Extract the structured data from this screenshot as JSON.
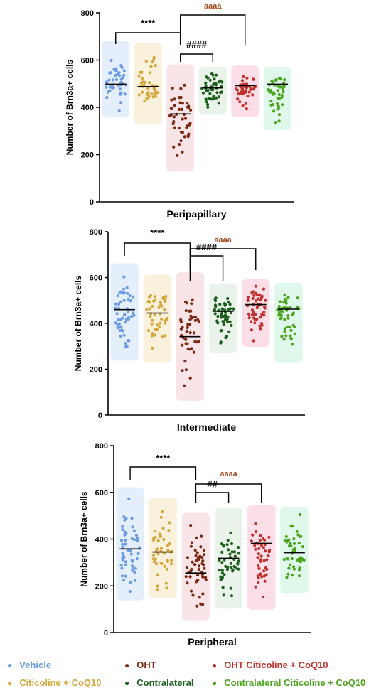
{
  "chart_data": [
    {
      "type": "scatter",
      "title": "Peripapillary",
      "ylabel": "Number of Brn3a+ cells",
      "ylim": [
        0,
        800
      ],
      "yticks": [
        0,
        200,
        400,
        600,
        800
      ],
      "groups": [
        "Vehicle",
        "Citicoline + CoQ10",
        "OHT",
        "Contralateral",
        "OHT Citicoline + CoQ10",
        "Contralateral Citicoline + CoQ10"
      ],
      "means": [
        498,
        488,
        372,
        482,
        492,
        498
      ],
      "ranges": [
        [
          370,
          670
        ],
        [
          340,
          660
        ],
        [
          140,
          570
        ],
        [
          380,
          560
        ],
        [
          370,
          565
        ],
        [
          315,
          560
        ]
      ],
      "n": [
        45,
        40,
        45,
        45,
        45,
        45
      ],
      "significance": [
        {
          "from": 0,
          "to": 2,
          "label": "****"
        },
        {
          "from": 2,
          "to": 3,
          "label": "####"
        },
        {
          "from": 2,
          "to": 4,
          "label": "aaaa"
        }
      ]
    },
    {
      "type": "scatter",
      "title": "Intermediate",
      "ylabel": "Number of Brn3a+ cells",
      "ylim": [
        0,
        800
      ],
      "yticks": [
        0,
        200,
        400,
        600,
        800
      ],
      "groups": [
        "Vehicle",
        "Citicoline + CoQ10",
        "OHT",
        "Contralateral",
        "OHT Citicoline + CoQ10",
        "Contralateral Citicoline + CoQ10"
      ],
      "means": [
        460,
        445,
        342,
        453,
        482,
        462
      ],
      "ranges": [
        [
          250,
          650
        ],
        [
          240,
          600
        ],
        [
          75,
          610
        ],
        [
          285,
          560
        ],
        [
          310,
          580
        ],
        [
          240,
          565
        ]
      ],
      "n": [
        50,
        45,
        45,
        50,
        50,
        50
      ],
      "significance": [
        {
          "from": 0,
          "to": 2,
          "label": "****"
        },
        {
          "from": 2,
          "to": 3,
          "label": "####"
        },
        {
          "from": 2,
          "to": 4,
          "label": "aaaa"
        }
      ]
    },
    {
      "type": "scatter",
      "title": "Peripheral",
      "ylabel": "Number of Brn3a+ cells",
      "ylim": [
        0,
        800
      ],
      "yticks": [
        0,
        200,
        400,
        600,
        800
      ],
      "groups": [
        "Vehicle",
        "Citicoline + CoQ10",
        "OHT",
        "Contralateral",
        "OHT Citicoline + CoQ10",
        "Contralateral Citicoline + CoQ10"
      ],
      "means": [
        358,
        345,
        255,
        318,
        382,
        342
      ],
      "ranges": [
        [
          150,
          610
        ],
        [
          160,
          565
        ],
        [
          65,
          500
        ],
        [
          115,
          520
        ],
        [
          110,
          535
        ],
        [
          180,
          525
        ]
      ],
      "n": [
        50,
        45,
        50,
        45,
        45,
        50
      ],
      "significance": [
        {
          "from": 0,
          "to": 2,
          "label": "****"
        },
        {
          "from": 2,
          "to": 3,
          "label": "##"
        },
        {
          "from": 2,
          "to": 4,
          "label": "aaaa"
        }
      ]
    }
  ],
  "legend": [
    {
      "label": "Vehicle",
      "color": "#6a9be3"
    },
    {
      "label": "Citicoline + CoQ10",
      "color": "#d4a73c"
    },
    {
      "label": "OHT",
      "color": "#7a2a12"
    },
    {
      "label": "Contralateral",
      "color": "#1d5e1d"
    },
    {
      "label": "OHT Citicoline + CoQ10",
      "color": "#c0322b"
    },
    {
      "label": "Contralateral Citicoline + CoQ10",
      "color": "#4ca51d"
    }
  ],
  "colors": {
    "dots": [
      "#6a9be3",
      "#d4a73c",
      "#7a2a12",
      "#1d5e1d",
      "#c0322b",
      "#4ca51d"
    ],
    "halos": [
      "#dce9fb",
      "#f8ecd2",
      "#f7dbe0",
      "#e1efe1",
      "#fad3df",
      "#d6f5e6"
    ],
    "aaaa": "#a04a1c",
    "axis": "#000000"
  }
}
